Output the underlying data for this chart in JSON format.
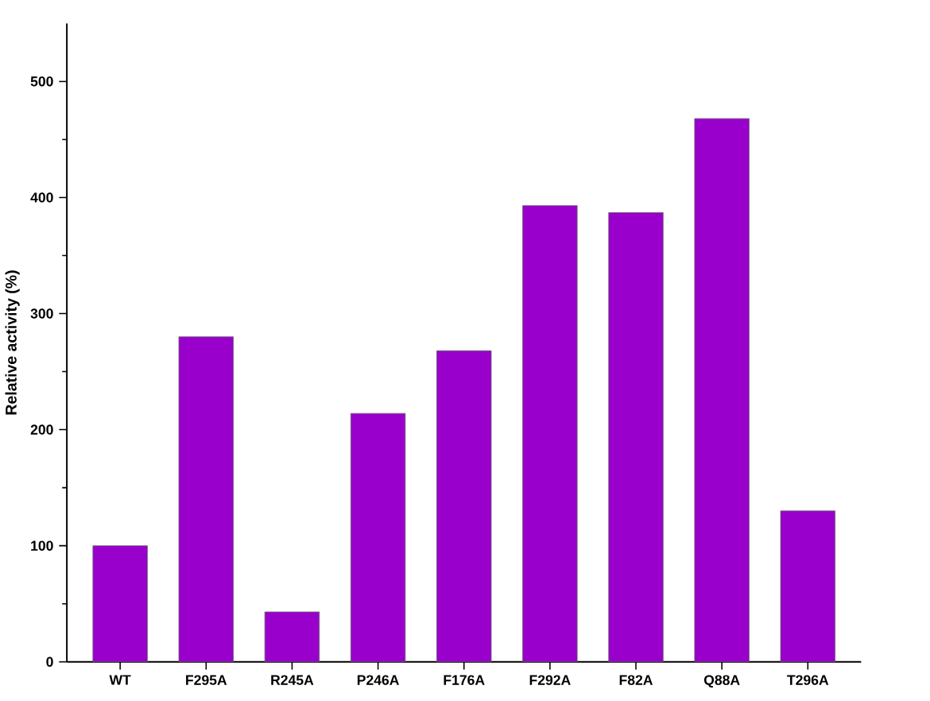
{
  "chart_data": {
    "type": "bar",
    "ylabel": "Relative activity (%)",
    "categories": [
      "WT",
      "F295A",
      "R245A",
      "P246A",
      "F176A",
      "F292A",
      "F82A",
      "Q88A",
      "T296A"
    ],
    "values": [
      100,
      280,
      43,
      214,
      268,
      393,
      387,
      468,
      130
    ],
    "color": "#9900cc",
    "ylim": [
      0,
      550
    ],
    "yticks": [
      0,
      100,
      200,
      300,
      400,
      500
    ],
    "grid": false
  }
}
